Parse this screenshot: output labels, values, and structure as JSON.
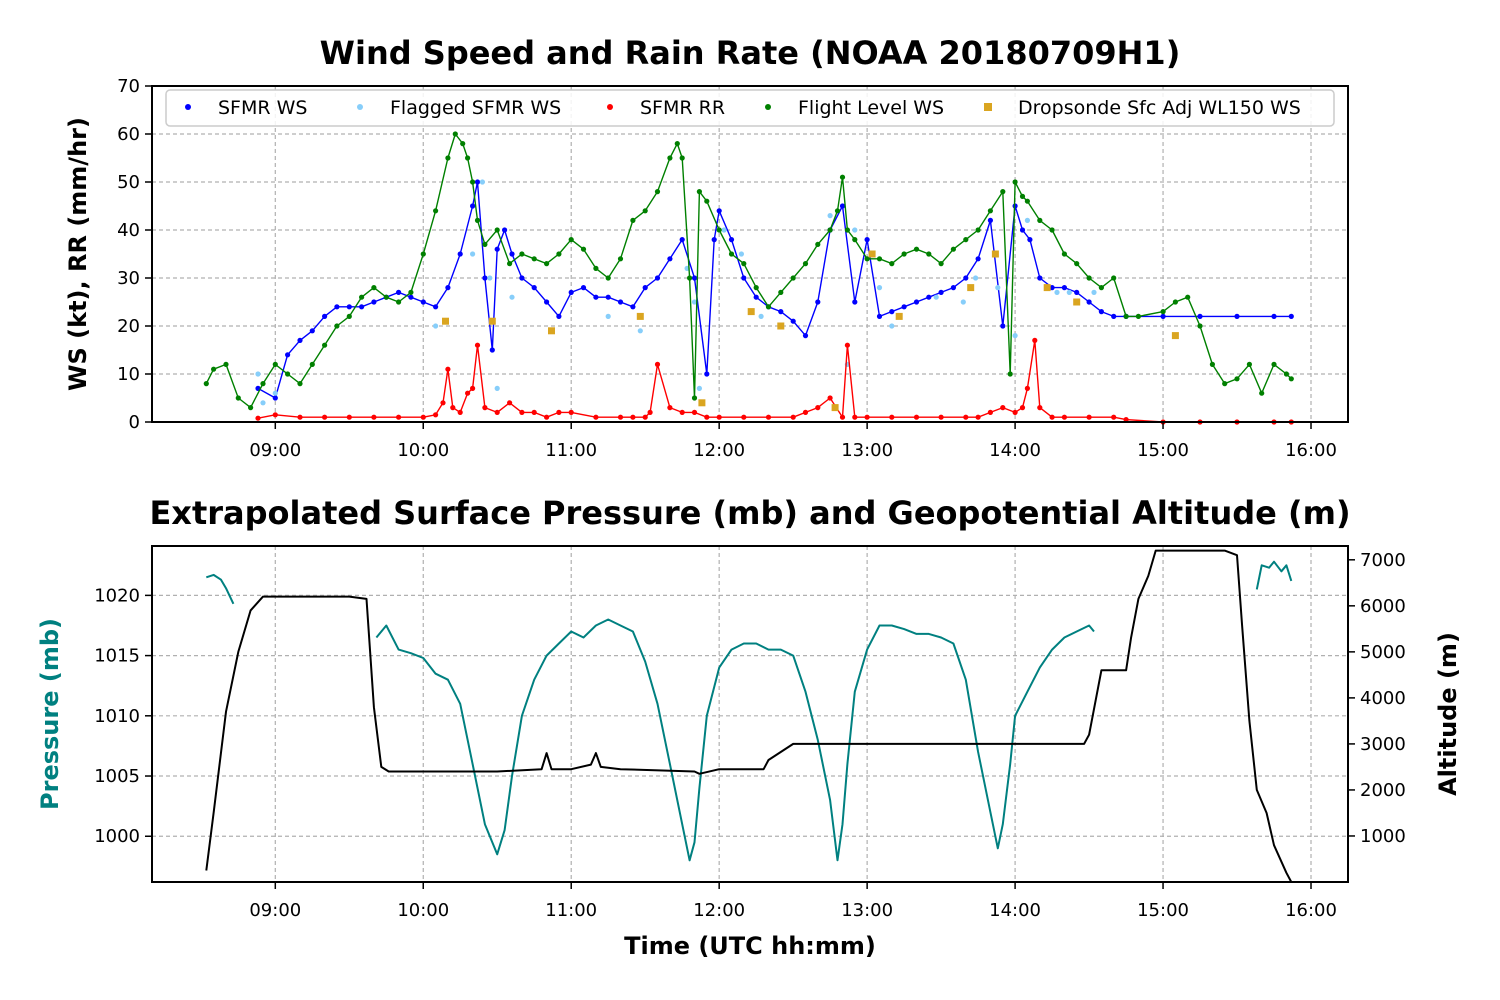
{
  "chart_data": [
    {
      "type": "scatter",
      "title": "Wind Speed and Rain Rate (NOAA 20180709H1)",
      "xlabel": "",
      "ylabel": "WS (kt), RR (mm/hr)",
      "xlim": [
        "08:10",
        "16:15"
      ],
      "ylim": [
        0,
        70
      ],
      "x_ticks": [
        "09:00",
        "10:00",
        "11:00",
        "12:00",
        "13:00",
        "14:00",
        "15:00",
        "16:00"
      ],
      "y_ticks": [
        "0",
        "10",
        "20",
        "30",
        "40",
        "50",
        "60",
        "70"
      ],
      "grid": true,
      "legend_position": "top",
      "series": [
        {
          "name": "SFMR WS",
          "color": "#0000ff",
          "style": "line-markers",
          "x": [
            "08:53",
            "09:00",
            "09:05",
            "09:10",
            "09:15",
            "09:20",
            "09:25",
            "09:30",
            "09:35",
            "09:40",
            "09:45",
            "09:50",
            "09:55",
            "10:00",
            "10:05",
            "10:10",
            "10:15",
            "10:20",
            "10:22",
            "10:25",
            "10:28",
            "10:30",
            "10:33",
            "10:36",
            "10:40",
            "10:45",
            "10:50",
            "10:55",
            "11:00",
            "11:05",
            "11:10",
            "11:15",
            "11:20",
            "11:25",
            "11:30",
            "11:35",
            "11:40",
            "11:45",
            "11:50",
            "11:55",
            "11:58",
            "12:00",
            "12:05",
            "12:10",
            "12:15",
            "12:20",
            "12:25",
            "12:30",
            "12:35",
            "12:40",
            "12:45",
            "12:50",
            "12:55",
            "13:00",
            "13:05",
            "13:10",
            "13:15",
            "13:20",
            "13:25",
            "13:30",
            "13:35",
            "13:40",
            "13:45",
            "13:50",
            "13:55",
            "14:00",
            "14:03",
            "14:06",
            "14:10",
            "14:15",
            "14:20",
            "14:25",
            "14:30",
            "14:35",
            "14:40",
            "14:45",
            "15:00",
            "15:15",
            "15:30",
            "15:45",
            "15:52"
          ],
          "y": [
            7,
            5,
            14,
            17,
            19,
            22,
            24,
            24,
            24,
            25,
            26,
            27,
            26,
            25,
            24,
            28,
            35,
            45,
            50,
            30,
            15,
            36,
            40,
            35,
            30,
            28,
            25,
            22,
            27,
            28,
            26,
            26,
            25,
            24,
            28,
            30,
            34,
            38,
            30,
            10,
            38,
            44,
            38,
            30,
            26,
            24,
            23,
            21,
            18,
            25,
            40,
            45,
            25,
            38,
            22,
            23,
            24,
            25,
            26,
            27,
            28,
            30,
            34,
            42,
            20,
            45,
            40,
            38,
            30,
            28,
            28,
            27,
            25,
            23,
            22,
            22,
            22,
            22,
            22,
            22,
            22
          ]
        },
        {
          "name": "Flagged SFMR WS",
          "color": "#87cefa",
          "style": "markers",
          "x": [
            "08:53",
            "08:55",
            "09:00",
            "10:05",
            "10:20",
            "10:24",
            "10:27",
            "10:30",
            "10:36",
            "11:15",
            "11:28",
            "11:47",
            "11:50",
            "11:52",
            "12:02",
            "12:09",
            "12:17",
            "12:45",
            "12:52",
            "12:55",
            "13:05",
            "13:10",
            "13:28",
            "13:39",
            "13:44",
            "13:53",
            "14:00",
            "14:05",
            "14:17",
            "14:22",
            "14:32"
          ],
          "y": [
            10,
            4,
            6,
            20,
            35,
            50,
            30,
            7,
            26,
            22,
            19,
            32,
            25,
            7,
            40,
            35,
            22,
            43,
            12,
            40,
            28,
            20,
            26,
            25,
            30,
            28,
            18,
            42,
            27,
            27,
            27
          ]
        },
        {
          "name": "SFMR RR",
          "color": "#ff0000",
          "style": "line-markers",
          "x": [
            "08:53",
            "09:00",
            "09:10",
            "09:20",
            "09:30",
            "09:40",
            "09:50",
            "10:00",
            "10:05",
            "10:08",
            "10:10",
            "10:12",
            "10:15",
            "10:18",
            "10:20",
            "10:22",
            "10:25",
            "10:30",
            "10:35",
            "10:40",
            "10:45",
            "10:50",
            "10:55",
            "11:00",
            "11:10",
            "11:20",
            "11:25",
            "11:30",
            "11:32",
            "11:35",
            "11:40",
            "11:45",
            "11:50",
            "11:55",
            "12:00",
            "12:10",
            "12:20",
            "12:30",
            "12:35",
            "12:40",
            "12:45",
            "12:50",
            "12:52",
            "12:55",
            "13:00",
            "13:10",
            "13:20",
            "13:30",
            "13:40",
            "13:45",
            "13:50",
            "13:55",
            "14:00",
            "14:03",
            "14:05",
            "14:08",
            "14:10",
            "14:15",
            "14:20",
            "14:30",
            "14:40",
            "14:45",
            "15:00",
            "15:15",
            "15:30",
            "15:45",
            "15:52"
          ],
          "y": [
            0.8,
            1.5,
            1,
            1,
            1,
            1,
            1,
            1,
            1.5,
            4,
            11,
            3,
            2,
            6,
            7,
            16,
            3,
            2,
            4,
            2,
            2,
            1,
            2,
            2,
            1,
            1,
            1,
            1,
            2,
            12,
            3,
            2,
            2,
            1,
            1,
            1,
            1,
            1,
            2,
            3,
            5,
            1,
            16,
            1,
            1,
            1,
            1,
            1,
            1,
            1,
            2,
            3,
            2,
            3,
            7,
            17,
            3,
            1,
            1,
            1,
            1,
            0.5,
            0,
            0,
            0,
            0,
            0
          ]
        },
        {
          "name": "Flight Level WS",
          "color": "#008000",
          "style": "line-markers",
          "x": [
            "08:32",
            "08:35",
            "08:40",
            "08:45",
            "08:50",
            "08:55",
            "09:00",
            "09:05",
            "09:10",
            "09:15",
            "09:20",
            "09:25",
            "09:30",
            "09:35",
            "09:40",
            "09:45",
            "09:50",
            "09:55",
            "10:00",
            "10:05",
            "10:10",
            "10:13",
            "10:16",
            "10:18",
            "10:20",
            "10:22",
            "10:25",
            "10:30",
            "10:35",
            "10:40",
            "10:45",
            "10:50",
            "10:55",
            "11:00",
            "11:05",
            "11:10",
            "11:15",
            "11:20",
            "11:25",
            "11:30",
            "11:35",
            "11:40",
            "11:43",
            "11:45",
            "11:48",
            "11:50",
            "11:52",
            "11:55",
            "12:00",
            "12:05",
            "12:10",
            "12:15",
            "12:20",
            "12:25",
            "12:30",
            "12:35",
            "12:40",
            "12:45",
            "12:48",
            "12:50",
            "12:52",
            "12:55",
            "13:00",
            "13:05",
            "13:10",
            "13:15",
            "13:20",
            "13:25",
            "13:30",
            "13:35",
            "13:40",
            "13:45",
            "13:50",
            "13:55",
            "13:58",
            "14:00",
            "14:03",
            "14:05",
            "14:10",
            "14:15",
            "14:20",
            "14:25",
            "14:30",
            "14:35",
            "14:40",
            "14:45",
            "14:50",
            "15:00",
            "15:05",
            "15:10",
            "15:15",
            "15:20",
            "15:25",
            "15:30",
            "15:35",
            "15:40",
            "15:45",
            "15:50",
            "15:52"
          ],
          "y": [
            8,
            11,
            12,
            5,
            3,
            8,
            12,
            10,
            8,
            12,
            16,
            20,
            22,
            26,
            28,
            26,
            25,
            27,
            35,
            44,
            55,
            60,
            58,
            55,
            50,
            42,
            37,
            40,
            33,
            35,
            34,
            33,
            35,
            38,
            36,
            32,
            30,
            34,
            42,
            44,
            48,
            55,
            58,
            55,
            30,
            5,
            48,
            46,
            40,
            35,
            33,
            28,
            24,
            27,
            30,
            33,
            37,
            40,
            44,
            51,
            40,
            38,
            34,
            34,
            33,
            35,
            36,
            35,
            33,
            36,
            38,
            40,
            44,
            48,
            10,
            50,
            47,
            46,
            42,
            40,
            35,
            33,
            30,
            28,
            30,
            22,
            22,
            23,
            25,
            26,
            20,
            12,
            8,
            9,
            12,
            6,
            12,
            10,
            9
          ]
        },
        {
          "name": "Dropsonde Sfc Adj WL150 WS",
          "color": "#daa520",
          "style": "square-markers",
          "x": [
            "10:09",
            "10:28",
            "10:52",
            "11:28",
            "11:53",
            "12:13",
            "12:25",
            "12:47",
            "13:02",
            "13:13",
            "13:42",
            "13:52",
            "14:13",
            "14:25",
            "15:05"
          ],
          "y": [
            21,
            21,
            19,
            22,
            4,
            23,
            20,
            3,
            35,
            22,
            28,
            35,
            28,
            25,
            18
          ]
        }
      ]
    },
    {
      "type": "line",
      "title": "Extrapolated Surface Pressure (mb) and Geopotential Altitude (m)",
      "xlabel": "Time (UTC hh:mm)",
      "ylabel": "Pressure (mb)",
      "ylabel_right": "Altitude (m)",
      "xlim": [
        "08:10",
        "16:15"
      ],
      "ylim": [
        996.2,
        1024.1
      ],
      "ylim_right": [
        0,
        7300
      ],
      "x_ticks": [
        "09:00",
        "10:00",
        "11:00",
        "12:00",
        "13:00",
        "14:00",
        "15:00",
        "16:00"
      ],
      "y_ticks": [
        "1000",
        "1005",
        "1010",
        "1015",
        "1020"
      ],
      "y_ticks_right": [
        "1000",
        "2000",
        "3000",
        "4000",
        "5000",
        "6000",
        "7000"
      ],
      "grid": true,
      "series": [
        {
          "name": "Pressure segment 1",
          "axis": "left",
          "color": "#008080",
          "x": [
            "08:32",
            "08:35",
            "08:38",
            "08:40",
            "08:43"
          ],
          "y": [
            1021.5,
            1021.7,
            1021.3,
            1020.6,
            1019.3
          ]
        },
        {
          "name": "Pressure segment 2",
          "axis": "left",
          "color": "#008080",
          "x": [
            "09:41",
            "09:45",
            "09:50",
            "09:55",
            "10:00",
            "10:05",
            "10:10",
            "10:15",
            "10:20",
            "10:25",
            "10:30",
            "10:33",
            "10:36",
            "10:40",
            "10:45",
            "10:50",
            "10:55",
            "11:00",
            "11:05",
            "11:10",
            "11:15",
            "11:20",
            "11:25",
            "11:30",
            "11:35",
            "11:40",
            "11:45",
            "11:48",
            "11:50",
            "11:52",
            "11:55",
            "12:00",
            "12:05",
            "12:10",
            "12:15",
            "12:20",
            "12:25",
            "12:30",
            "12:35",
            "12:40",
            "12:45",
            "12:48",
            "12:50",
            "12:52",
            "12:55",
            "13:00",
            "13:05",
            "13:10",
            "13:15",
            "13:20",
            "13:25",
            "13:30",
            "13:35",
            "13:40",
            "13:45",
            "13:50",
            "13:53",
            "13:55",
            "13:58",
            "14:00",
            "14:05",
            "14:10",
            "14:15",
            "14:20",
            "14:25",
            "14:30",
            "14:32"
          ],
          "y": [
            1016.5,
            1017.5,
            1015.5,
            1015.2,
            1014.8,
            1013.5,
            1013,
            1011,
            1006,
            1001,
            998.5,
            1000.5,
            1005,
            1010,
            1013,
            1015,
            1016,
            1017,
            1016.5,
            1017.5,
            1018,
            1017.5,
            1017,
            1014.5,
            1011,
            1006,
            1001,
            998,
            999.5,
            1004,
            1010,
            1014,
            1015.5,
            1016,
            1016,
            1015.5,
            1015.5,
            1015,
            1012,
            1008,
            1003,
            998,
            1001,
            1006,
            1012,
            1015.5,
            1017.5,
            1017.5,
            1017.2,
            1016.8,
            1016.8,
            1016.5,
            1016,
            1013,
            1007,
            1002,
            999,
            1001,
            1006,
            1010,
            1012,
            1014,
            1015.5,
            1016.5,
            1017,
            1017.5,
            1017
          ]
        },
        {
          "name": "Pressure segment 3",
          "axis": "left",
          "color": "#008080",
          "x": [
            "15:38",
            "15:40",
            "15:43",
            "15:45",
            "15:48",
            "15:50",
            "15:52"
          ],
          "y": [
            1020.5,
            1022.5,
            1022.3,
            1022.8,
            1022,
            1022.5,
            1021.2
          ]
        },
        {
          "name": "Altitude",
          "axis": "right",
          "color": "#000000",
          "x": [
            "08:32",
            "08:35",
            "08:40",
            "08:45",
            "08:50",
            "08:55",
            "09:00",
            "09:30",
            "09:37",
            "09:40",
            "09:43",
            "09:46",
            "09:50",
            "10:00",
            "10:30",
            "10:48",
            "10:50",
            "10:52",
            "11:00",
            "11:08",
            "11:10",
            "11:12",
            "11:20",
            "11:50",
            "11:52",
            "12:00",
            "12:18",
            "12:20",
            "12:30",
            "13:00",
            "13:30",
            "14:00",
            "14:28",
            "14:30",
            "14:35",
            "14:45",
            "14:47",
            "14:50",
            "14:54",
            "14:57",
            "15:05",
            "15:15",
            "15:25",
            "15:30",
            "15:32",
            "15:35",
            "15:38",
            "15:42",
            "15:45",
            "15:50",
            "15:52"
          ],
          "y": [
            250,
            1500,
            3700,
            5000,
            5900,
            6200,
            6200,
            6200,
            6150,
            3800,
            2500,
            2400,
            2400,
            2400,
            2400,
            2450,
            2800,
            2450,
            2450,
            2550,
            2800,
            2500,
            2450,
            2400,
            2350,
            2450,
            2450,
            2650,
            3000,
            3000,
            3000,
            3000,
            3000,
            3200,
            4600,
            4600,
            5300,
            6150,
            6650,
            7200,
            7200,
            7200,
            7200,
            7100,
            5600,
            3500,
            2000,
            1500,
            800,
            200,
            0
          ]
        }
      ]
    }
  ]
}
